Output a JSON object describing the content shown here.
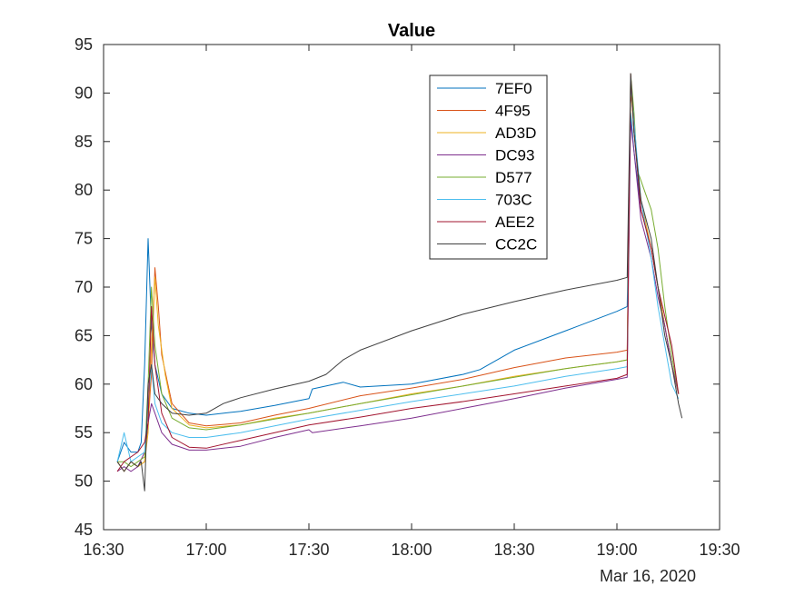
{
  "chart_data": {
    "type": "line",
    "title": "Value",
    "date_label": "Mar 16, 2020",
    "xlabel": "",
    "ylabel": "",
    "xlim": [
      "16:30",
      "19:30"
    ],
    "ylim": [
      45,
      95
    ],
    "x_ticks": [
      "16:30",
      "17:00",
      "17:30",
      "18:00",
      "18:30",
      "19:00",
      "19:30"
    ],
    "y_ticks": [
      45,
      50,
      55,
      60,
      65,
      70,
      75,
      80,
      85,
      90,
      95
    ],
    "grid": false,
    "legend_position": "top-right",
    "series": [
      {
        "name": "7EF0",
        "color": "#0072BD",
        "points": [
          [
            "16:34",
            52
          ],
          [
            "16:36",
            54
          ],
          [
            "16:38",
            53
          ],
          [
            "16:40",
            53
          ],
          [
            "16:41",
            54
          ],
          [
            "16:42",
            62
          ],
          [
            "16:43",
            75
          ],
          [
            "16:44",
            66
          ],
          [
            "16:45",
            62
          ],
          [
            "16:47",
            59
          ],
          [
            "16:50",
            57.5
          ],
          [
            "16:55",
            57
          ],
          [
            "17:00",
            56.8
          ],
          [
            "17:10",
            57.2
          ],
          [
            "17:20",
            57.8
          ],
          [
            "17:30",
            58.5
          ],
          [
            "17:31",
            59.5
          ],
          [
            "17:40",
            60.2
          ],
          [
            "17:45",
            59.7
          ],
          [
            "18:00",
            60
          ],
          [
            "18:15",
            61
          ],
          [
            "18:20",
            61.5
          ],
          [
            "18:30",
            63.5
          ],
          [
            "18:45",
            65.5
          ],
          [
            "19:00",
            67.5
          ],
          [
            "19:03",
            68
          ],
          [
            "19:04",
            88
          ],
          [
            "19:05",
            84
          ],
          [
            "19:07",
            78
          ],
          [
            "19:10",
            74
          ],
          [
            "19:12",
            70
          ],
          [
            "19:14",
            66
          ],
          [
            "19:16",
            62
          ],
          [
            "19:18",
            59
          ]
        ]
      },
      {
        "name": "4F95",
        "color": "#D95319",
        "points": [
          [
            "16:34",
            52
          ],
          [
            "16:36",
            51
          ],
          [
            "16:38",
            52
          ],
          [
            "16:40",
            51.5
          ],
          [
            "16:42",
            52
          ],
          [
            "16:43",
            56
          ],
          [
            "16:44",
            61
          ],
          [
            "16:45",
            72
          ],
          [
            "16:46",
            68
          ],
          [
            "16:47",
            63
          ],
          [
            "16:50",
            58
          ],
          [
            "16:55",
            56
          ],
          [
            "17:00",
            55.7
          ],
          [
            "17:10",
            56
          ],
          [
            "17:20",
            56.8
          ],
          [
            "17:30",
            57.5
          ],
          [
            "17:45",
            58.8
          ],
          [
            "18:00",
            59.6
          ],
          [
            "18:15",
            60.5
          ],
          [
            "18:30",
            61.7
          ],
          [
            "18:45",
            62.7
          ],
          [
            "19:00",
            63.3
          ],
          [
            "19:03",
            63.5
          ],
          [
            "19:04",
            90
          ],
          [
            "19:05",
            87
          ],
          [
            "19:07",
            78
          ],
          [
            "19:10",
            74
          ],
          [
            "19:12",
            70
          ],
          [
            "19:14",
            66
          ],
          [
            "19:16",
            62
          ],
          [
            "19:18",
            59
          ]
        ]
      },
      {
        "name": "AD3D",
        "color": "#EDB120",
        "points": [
          [
            "16:34",
            52
          ],
          [
            "16:36",
            51
          ],
          [
            "16:38",
            52
          ],
          [
            "16:40",
            51.5
          ],
          [
            "16:42",
            52
          ],
          [
            "16:43",
            55
          ],
          [
            "16:44",
            64
          ],
          [
            "16:45",
            71
          ],
          [
            "16:46",
            66
          ],
          [
            "16:48",
            61
          ],
          [
            "16:50",
            57.5
          ],
          [
            "16:55",
            55.8
          ],
          [
            "17:00",
            55.5
          ],
          [
            "17:10",
            55.8
          ],
          [
            "17:20",
            56.5
          ],
          [
            "17:30",
            57
          ],
          [
            "17:45",
            58
          ],
          [
            "18:00",
            59
          ],
          [
            "18:15",
            59.8
          ],
          [
            "18:30",
            60.8
          ],
          [
            "18:45",
            61.6
          ],
          [
            "19:00",
            62.3
          ],
          [
            "19:03",
            62.5
          ],
          [
            "19:04",
            91
          ],
          [
            "19:05",
            86
          ],
          [
            "19:07",
            79
          ],
          [
            "19:10",
            74
          ],
          [
            "19:12",
            70
          ],
          [
            "19:14",
            66
          ],
          [
            "19:16",
            62
          ],
          [
            "19:18",
            59
          ]
        ]
      },
      {
        "name": "DC93",
        "color": "#7E2F8E",
        "points": [
          [
            "16:34",
            51
          ],
          [
            "16:36",
            51.5
          ],
          [
            "16:38",
            51
          ],
          [
            "16:40",
            51.5
          ],
          [
            "16:42",
            53
          ],
          [
            "16:43",
            56
          ],
          [
            "16:44",
            58
          ],
          [
            "16:45",
            57
          ],
          [
            "16:47",
            55
          ],
          [
            "16:50",
            53.8
          ],
          [
            "16:55",
            53.2
          ],
          [
            "17:00",
            53.2
          ],
          [
            "17:10",
            53.6
          ],
          [
            "17:20",
            54.5
          ],
          [
            "17:30",
            55.3
          ],
          [
            "17:31",
            55
          ],
          [
            "17:45",
            55.7
          ],
          [
            "18:00",
            56.5
          ],
          [
            "18:15",
            57.5
          ],
          [
            "18:30",
            58.5
          ],
          [
            "18:45",
            59.6
          ],
          [
            "19:00",
            60.5
          ],
          [
            "19:03",
            60.7
          ],
          [
            "19:04",
            87
          ],
          [
            "19:05",
            84
          ],
          [
            "19:07",
            77
          ],
          [
            "19:10",
            73
          ],
          [
            "19:12",
            69
          ],
          [
            "19:14",
            66
          ],
          [
            "19:16",
            62
          ],
          [
            "19:18",
            59
          ]
        ]
      },
      {
        "name": "D577",
        "color": "#77AC30",
        "points": [
          [
            "16:34",
            52
          ],
          [
            "16:36",
            52
          ],
          [
            "16:38",
            51.5
          ],
          [
            "16:40",
            52
          ],
          [
            "16:42",
            52.5
          ],
          [
            "16:43",
            60
          ],
          [
            "16:44",
            70
          ],
          [
            "16:45",
            64
          ],
          [
            "16:47",
            59
          ],
          [
            "16:50",
            56.5
          ],
          [
            "16:55",
            55.5
          ],
          [
            "17:00",
            55.3
          ],
          [
            "17:10",
            55.8
          ],
          [
            "17:20",
            56.4
          ],
          [
            "17:30",
            57
          ],
          [
            "17:45",
            58
          ],
          [
            "18:00",
            58.9
          ],
          [
            "18:15",
            59.8
          ],
          [
            "18:30",
            60.7
          ],
          [
            "18:45",
            61.6
          ],
          [
            "19:00",
            62.3
          ],
          [
            "19:03",
            62.5
          ],
          [
            "19:04",
            92
          ],
          [
            "19:05",
            88
          ],
          [
            "19:06",
            82
          ],
          [
            "19:08",
            80
          ],
          [
            "19:10",
            78
          ],
          [
            "19:12",
            74
          ],
          [
            "19:14",
            68
          ],
          [
            "19:16",
            63
          ],
          [
            "19:18",
            59
          ]
        ]
      },
      {
        "name": "703C",
        "color": "#4DBEEE",
        "points": [
          [
            "16:34",
            52
          ],
          [
            "16:36",
            55
          ],
          [
            "16:38",
            52
          ],
          [
            "16:40",
            52.5
          ],
          [
            "16:42",
            53
          ],
          [
            "16:43",
            58
          ],
          [
            "16:44",
            62
          ],
          [
            "16:45",
            58
          ],
          [
            "16:47",
            56
          ],
          [
            "16:50",
            55
          ],
          [
            "16:55",
            54.5
          ],
          [
            "17:00",
            54.5
          ],
          [
            "17:10",
            55
          ],
          [
            "17:20",
            55.7
          ],
          [
            "17:30",
            56.4
          ],
          [
            "17:45",
            57.3
          ],
          [
            "18:00",
            58.2
          ],
          [
            "18:15",
            59
          ],
          [
            "18:30",
            59.8
          ],
          [
            "18:45",
            60.8
          ],
          [
            "19:00",
            61.6
          ],
          [
            "19:03",
            61.8
          ],
          [
            "19:04",
            91
          ],
          [
            "19:05",
            87
          ],
          [
            "19:07",
            79
          ],
          [
            "19:10",
            73
          ],
          [
            "19:12",
            68
          ],
          [
            "19:14",
            64
          ],
          [
            "19:16",
            60
          ],
          [
            "19:18",
            58.5
          ]
        ]
      },
      {
        "name": "AEE2",
        "color": "#A2142F",
        "points": [
          [
            "16:34",
            51
          ],
          [
            "16:36",
            52
          ],
          [
            "16:38",
            52.5
          ],
          [
            "16:40",
            53
          ],
          [
            "16:42",
            54
          ],
          [
            "16:43",
            56
          ],
          [
            "16:44",
            68
          ],
          [
            "16:45",
            62
          ],
          [
            "16:47",
            57
          ],
          [
            "16:50",
            54.5
          ],
          [
            "16:55",
            53.5
          ],
          [
            "17:00",
            53.4
          ],
          [
            "17:10",
            54.2
          ],
          [
            "17:20",
            55
          ],
          [
            "17:30",
            55.8
          ],
          [
            "17:45",
            56.6
          ],
          [
            "18:00",
            57.5
          ],
          [
            "18:15",
            58.2
          ],
          [
            "18:30",
            59
          ],
          [
            "18:45",
            59.8
          ],
          [
            "19:00",
            60.6
          ],
          [
            "19:03",
            61
          ],
          [
            "19:04",
            92
          ],
          [
            "19:05",
            86
          ],
          [
            "19:07",
            78
          ],
          [
            "19:10",
            74
          ],
          [
            "19:12",
            70
          ],
          [
            "19:14",
            67
          ],
          [
            "19:16",
            64
          ],
          [
            "19:18",
            59
          ]
        ]
      },
      {
        "name": "CC2C",
        "color": "#404040",
        "points": [
          [
            "16:34",
            52
          ],
          [
            "16:36",
            51
          ],
          [
            "16:38",
            52
          ],
          [
            "16:40",
            51.5
          ],
          [
            "16:41",
            52
          ],
          [
            "16:42",
            49
          ],
          [
            "16:43",
            60
          ],
          [
            "16:44",
            62
          ],
          [
            "16:45",
            59
          ],
          [
            "16:47",
            58
          ],
          [
            "16:50",
            57
          ],
          [
            "16:55",
            56.8
          ],
          [
            "17:00",
            57
          ],
          [
            "17:05",
            58
          ],
          [
            "17:10",
            58.6
          ],
          [
            "17:20",
            59.5
          ],
          [
            "17:30",
            60.3
          ],
          [
            "17:35",
            61
          ],
          [
            "17:40",
            62.5
          ],
          [
            "17:45",
            63.5
          ],
          [
            "18:00",
            65.5
          ],
          [
            "18:15",
            67.2
          ],
          [
            "18:30",
            68.5
          ],
          [
            "18:45",
            69.7
          ],
          [
            "19:00",
            70.7
          ],
          [
            "19:03",
            71
          ],
          [
            "19:04",
            92
          ],
          [
            "19:05",
            86
          ],
          [
            "19:07",
            79
          ],
          [
            "19:10",
            75
          ],
          [
            "19:12",
            70
          ],
          [
            "19:14",
            65
          ],
          [
            "19:16",
            62
          ],
          [
            "19:18",
            58
          ],
          [
            "19:19",
            56.5
          ]
        ]
      }
    ]
  }
}
